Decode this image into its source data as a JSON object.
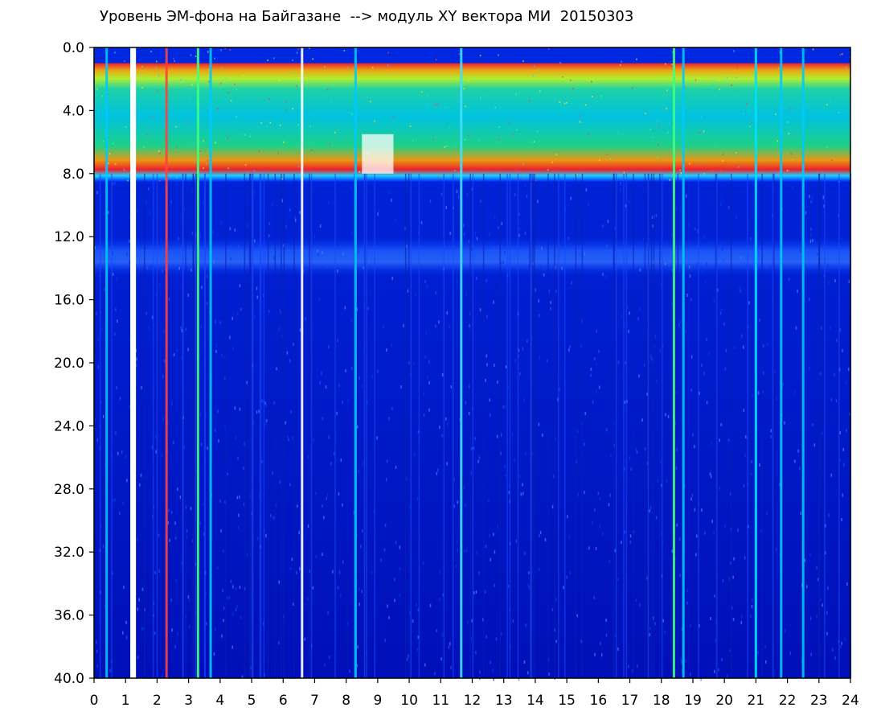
{
  "chart_data": {
    "type": "heatmap",
    "title": "Уровень ЭМ-фона на Байгазане  --> модуль XY вектора МИ  20150303",
    "xlabel": "",
    "ylabel": "",
    "xlim": [
      0,
      24
    ],
    "ylim": [
      40.0,
      0.0
    ],
    "y_inverted": true,
    "x_ticks": [
      "0",
      "1",
      "2",
      "3",
      "4",
      "5",
      "6",
      "7",
      "8",
      "9",
      "10",
      "11",
      "12",
      "13",
      "14",
      "15",
      "16",
      "17",
      "18",
      "19",
      "20",
      "21",
      "22",
      "23",
      "24"
    ],
    "y_ticks": [
      "0.0",
      "4.0",
      "8.0",
      "12.0",
      "16.0",
      "20.0",
      "24.0",
      "28.0",
      "32.0",
      "36.0",
      "40.0"
    ],
    "grid": false,
    "legend": "none",
    "colorscale": [
      "#0000c8",
      "#0032ff",
      "#00a0ff",
      "#00e0e0",
      "#40ff80",
      "#c0ff00",
      "#ffff00",
      "#ff8000",
      "#ff0000",
      "#ffffff"
    ],
    "background_color": "#0018c8",
    "features": {
      "active_band": {
        "y_top": 1.0,
        "y_bottom": 8.5
      },
      "weak_band": {
        "y_top": 12.0,
        "y_bottom": 14.5
      },
      "white_gaps": [
        {
          "x": 1.15,
          "width": 0.18
        },
        {
          "x": 8.5,
          "width": 1.0,
          "y_top": 5.5,
          "y_bottom": 8.0
        }
      ],
      "bright_vertical_lines": [
        {
          "x": 0.4,
          "color": "#00c8ff"
        },
        {
          "x": 2.3,
          "color": "#ff4040"
        },
        {
          "x": 3.3,
          "color": "#40ff80"
        },
        {
          "x": 3.7,
          "color": "#00c8ff"
        },
        {
          "x": 6.6,
          "color": "#ffffff"
        },
        {
          "x": 8.3,
          "color": "#00c8ff"
        },
        {
          "x": 11.65,
          "color": "#40e0ff"
        },
        {
          "x": 18.4,
          "color": "#40ff80"
        },
        {
          "x": 18.7,
          "color": "#00c8ff"
        },
        {
          "x": 21.0,
          "color": "#00e0ff"
        },
        {
          "x": 21.8,
          "color": "#00c8ff"
        },
        {
          "x": 22.5,
          "color": "#00c8ff"
        }
      ]
    }
  }
}
